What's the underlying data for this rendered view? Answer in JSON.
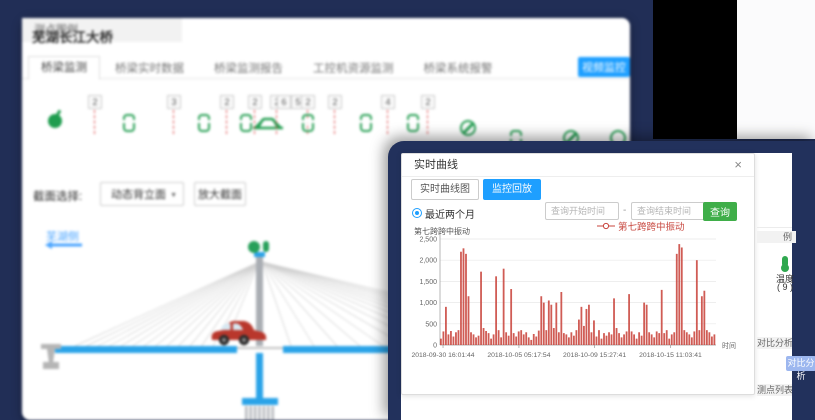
{
  "colors": {
    "page_bg": "#212e56",
    "accent_blue": "#1e9fff",
    "sensor_green": "#28a055",
    "query_green": "#3fae49",
    "chart_red": "#c9453e",
    "disabled_blue": "#9db7ef",
    "deck_blue": "#2aa3e8"
  },
  "icons": {
    "dropdown_arrow": "▼"
  },
  "back_window": {
    "title": "芜湖长江大桥",
    "tabs": [
      {
        "label": "桥梁监测",
        "active": true
      },
      {
        "label": "桥梁实时数据",
        "active": false
      },
      {
        "label": "桥梁监测报告",
        "active": false
      },
      {
        "label": "工控机资源监测",
        "active": false
      },
      {
        "label": "桥梁系统报警",
        "active": false
      }
    ],
    "video_button": "视频监控",
    "sensor_strip": {
      "badges": [
        "2",
        "3",
        "2",
        "2",
        "2",
        "6",
        "5",
        "2",
        "2",
        "4",
        "2"
      ]
    },
    "legend_panel": {
      "title": "测点图例"
    },
    "section_row": {
      "label": "截面选择:",
      "select_value": "动态背立面",
      "zoom_button": "放大截面"
    },
    "side_label": "芜湖侧"
  },
  "front_window": {
    "dialog": {
      "title": "实时曲线",
      "close": "×",
      "tabs": [
        {
          "label": "实时曲线图",
          "active": false
        },
        {
          "label": "监控回放",
          "active": true
        }
      ],
      "radio_label": "最近两个月",
      "start_placeholder": "查询开始时间",
      "separator": "-",
      "end_placeholder": "查询结束时间",
      "query_button": "查询",
      "legend": "第七跨跨中振动"
    },
    "side_strip": {
      "legend_header": "例",
      "temp_label": "温度",
      "temp_count": "( 9 )",
      "compare_header": "对比分析",
      "compare_button": "对比分析",
      "list_header": "测点列表"
    }
  },
  "chart_data": {
    "type": "bar",
    "title": "第七跨跨中振动",
    "series_name": "第七跨跨中振动",
    "xlabel": "时间",
    "ylabel": "",
    "ylim": [
      0,
      2500
    ],
    "yticks": [
      0,
      500,
      1000,
      1500,
      2000,
      2500
    ],
    "ytick_labels": [
      "0",
      "500",
      "1,000",
      "1,500",
      "2,000",
      "2,500"
    ],
    "x_axis_labels": [
      "2018-09-30 16:01:44",
      "2018-10-05 05:17:54",
      "2018-10-09 15:27:41",
      "2018-10-15 11:03:41"
    ],
    "grid": true,
    "legend_position": "top",
    "color": "#c9453e",
    "values": [
      150,
      320,
      900,
      250,
      330,
      200,
      300,
      350,
      2200,
      2280,
      2150,
      1150,
      300,
      250,
      180,
      220,
      1730,
      400,
      330,
      280,
      150,
      250,
      1620,
      350,
      180,
      1800,
      300,
      220,
      1320,
      280,
      200,
      320,
      350,
      250,
      300,
      180,
      120,
      260,
      200,
      340,
      1150,
      1000,
      350,
      1050,
      950,
      400,
      1000,
      300,
      1250,
      280,
      250,
      180,
      300,
      220,
      350,
      600,
      900,
      450,
      850,
      950,
      300,
      580,
      200,
      350,
      150,
      280,
      220,
      300,
      250,
      1100,
      400,
      280,
      180,
      250,
      320,
      1200,
      320,
      250,
      150,
      300,
      220,
      1000,
      950,
      300,
      250,
      180,
      320,
      280,
      1300,
      280,
      350,
      150,
      250,
      300,
      2150,
      2380,
      2300,
      350,
      300,
      250,
      180,
      320,
      2000,
      350,
      1150,
      1280,
      350,
      300,
      200,
      250
    ]
  }
}
